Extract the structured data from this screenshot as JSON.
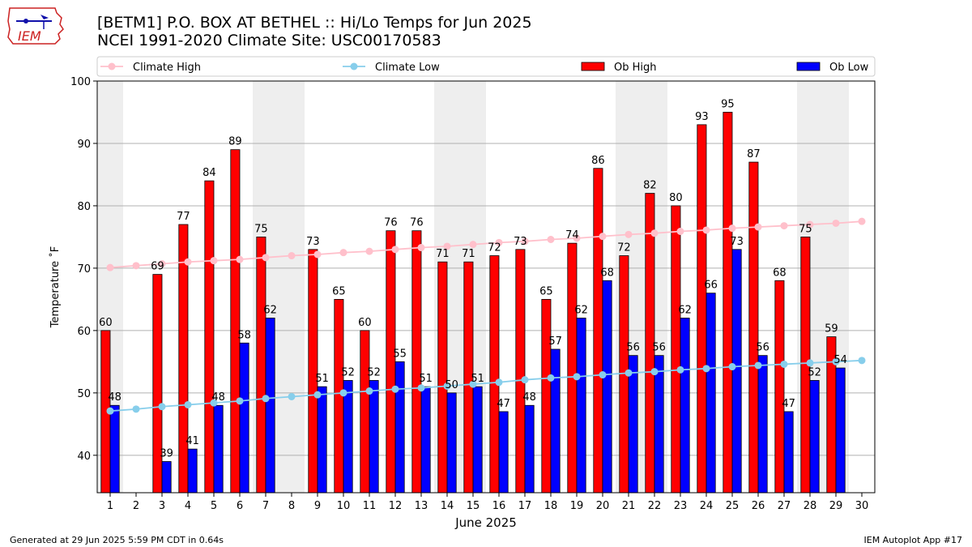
{
  "header": {
    "title_line1": "[BETM1] P.O. BOX AT BETHEL :: Hi/Lo Temps for Jun 2025",
    "title_line2": "NCEI 1991-2020 Climate Site: USC00170583",
    "logo_text": "IEM"
  },
  "footer": {
    "generated": "Generated at 29 Jun 2025 5:59 PM CDT in 0.64s",
    "app": "IEM Autoplot App #17"
  },
  "colors": {
    "ob_high": "#ff0000",
    "ob_low": "#0000ff",
    "climate_high": "#ffc0cb",
    "climate_low": "#87ceeb",
    "weekend_shade": "#eeeeee"
  },
  "chart_data": {
    "type": "bar",
    "xlabel": "June 2025",
    "ylabel": "Temperature ˚F",
    "ylim": [
      34,
      100
    ],
    "yticks": [
      40,
      50,
      60,
      70,
      80,
      90,
      100
    ],
    "x": [
      1,
      2,
      3,
      4,
      5,
      6,
      7,
      8,
      9,
      10,
      11,
      12,
      13,
      14,
      15,
      16,
      17,
      18,
      19,
      20,
      21,
      22,
      23,
      24,
      25,
      26,
      27,
      28,
      29,
      30
    ],
    "grid": "horizontal",
    "legend_placement": "top",
    "shaded_days": [
      1,
      7,
      8,
      14,
      15,
      21,
      22,
      28,
      29
    ],
    "legend": [
      "Climate High",
      "Climate Low",
      "Ob High",
      "Ob Low"
    ],
    "series": [
      {
        "name": "Ob High",
        "type": "bar",
        "values": [
          60,
          null,
          69,
          77,
          84,
          89,
          75,
          null,
          73,
          65,
          60,
          76,
          76,
          71,
          71,
          72,
          73,
          65,
          74,
          86,
          72,
          82,
          80,
          93,
          95,
          87,
          68,
          75,
          59,
          null
        ]
      },
      {
        "name": "Ob Low",
        "type": "bar",
        "values": [
          48,
          null,
          39,
          41,
          48,
          58,
          62,
          null,
          51,
          52,
          52,
          55,
          51,
          50,
          51,
          47,
          48,
          57,
          62,
          68,
          56,
          56,
          62,
          66,
          73,
          56,
          47,
          52,
          54,
          null
        ]
      },
      {
        "name": "Climate High",
        "type": "line",
        "values": [
          70.1,
          70.4,
          70.7,
          71.0,
          71.2,
          71.4,
          71.7,
          72.0,
          72.2,
          72.5,
          72.7,
          73.0,
          73.3,
          73.5,
          73.8,
          74.1,
          74.3,
          74.6,
          74.8,
          75.1,
          75.4,
          75.6,
          75.9,
          76.1,
          76.4,
          76.6,
          76.8,
          77.0,
          77.2,
          77.5
        ]
      },
      {
        "name": "Climate Low",
        "type": "line",
        "values": [
          47.1,
          47.4,
          47.8,
          48.1,
          48.4,
          48.7,
          49.1,
          49.4,
          49.7,
          50.0,
          50.3,
          50.6,
          50.8,
          51.1,
          51.4,
          51.7,
          52.1,
          52.4,
          52.6,
          52.9,
          53.2,
          53.4,
          53.7,
          53.9,
          54.2,
          54.4,
          54.6,
          54.8,
          55.0,
          55.2
        ]
      }
    ]
  }
}
